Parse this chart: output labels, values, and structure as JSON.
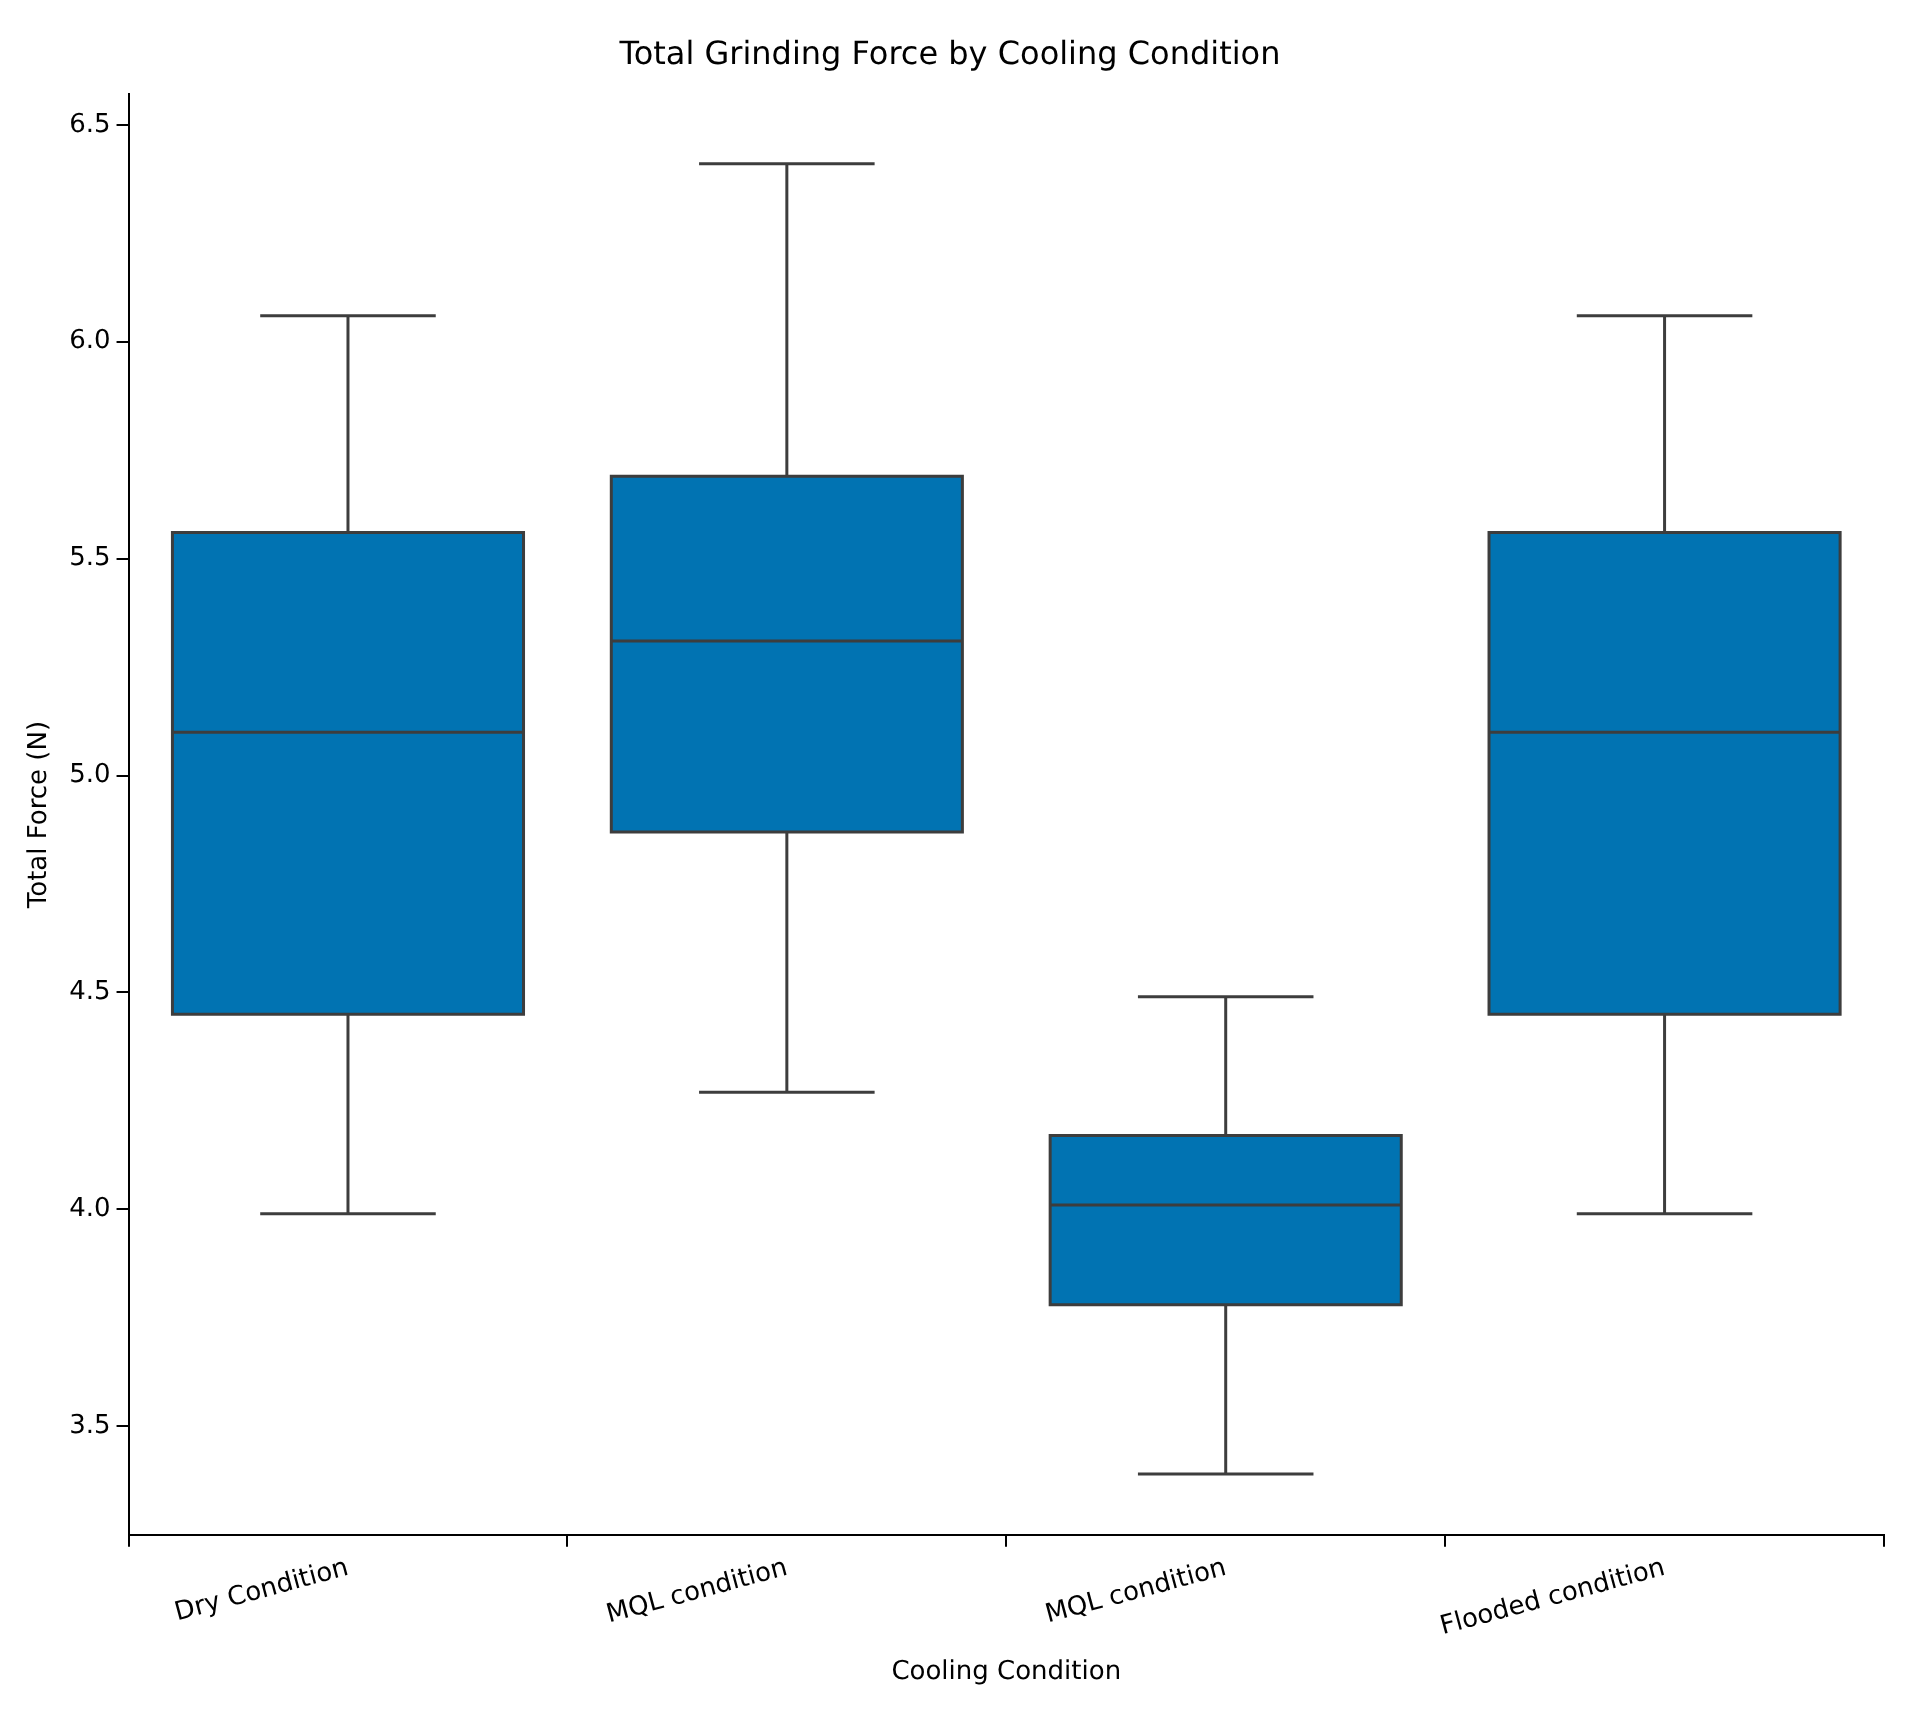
{
  "chart_data": {
    "type": "box",
    "title": "Total Grinding Force by Cooling Condition",
    "xlabel": "Cooling Condition",
    "ylabel": "Total Force (N)",
    "categories": [
      "Dry Condition",
      "MQL condition",
      "MQL condition",
      "Flooded condition"
    ],
    "color": "#0173b2",
    "boxes": [
      {
        "low": 3.99,
        "q1": 4.45,
        "median": 5.1,
        "q3": 5.56,
        "high": 6.06
      },
      {
        "low": 4.27,
        "q1": 4.87,
        "median": 5.31,
        "q3": 5.69,
        "high": 6.41
      },
      {
        "low": 3.39,
        "q1": 3.78,
        "median": 4.01,
        "q3": 4.17,
        "high": 4.49
      },
      {
        "low": 3.99,
        "q1": 4.45,
        "median": 5.1,
        "q3": 5.56,
        "high": 6.06
      }
    ],
    "ylim": [
      3.25,
      6.57
    ],
    "yticks": [
      {
        "value": 3.5,
        "label": "3.5"
      },
      {
        "value": 4,
        "label": "4.0"
      },
      {
        "value": 4.5,
        "label": "4.5"
      },
      {
        "value": 5,
        "label": "5.0"
      },
      {
        "value": 5.5,
        "label": "5.5"
      },
      {
        "value": 6,
        "label": "6.0"
      },
      {
        "value": 6.5,
        "label": "6.5"
      }
    ],
    "grid": false,
    "legend": false
  }
}
